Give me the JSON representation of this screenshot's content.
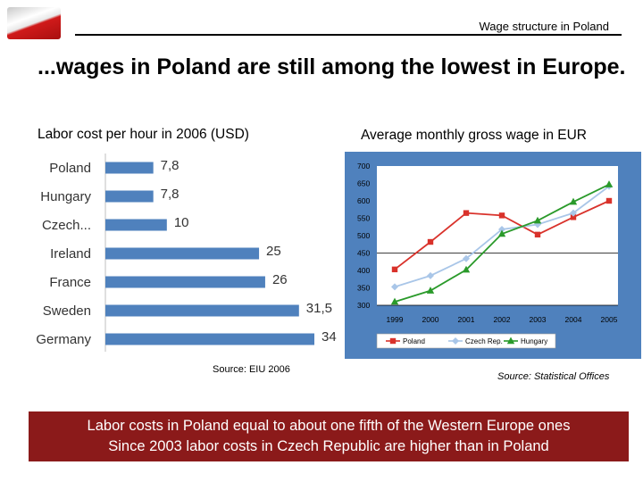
{
  "header": {
    "title": "Wage structure in Poland"
  },
  "headline": "...wages in Poland are still among the lowest in Europe.",
  "left_subtitle": "Labor cost per hour in 2006 (USD)",
  "right_subtitle": "Average monthly gross wage in EUR",
  "left_source": "Source: EIU 2006",
  "right_source": "Source: Statistical Offices",
  "banner": {
    "line1": "Labor costs in Poland equal to about one fifth of the Western Europe ones",
    "line2": "Since 2003 labor costs in Czech Republic are higher than in Poland"
  },
  "colors": {
    "bar": "#4f81bd",
    "line_panel_bg": "#4f81bd",
    "plot_bg": "#ffffff",
    "poland": "#d9322b",
    "czech": "#a9c6e8",
    "hungary": "#2a9a2a",
    "banner_bg": "#8b1a1a"
  },
  "chart_data": [
    {
      "type": "bar",
      "orientation": "horizontal",
      "title": "Labor cost per hour in 2006 (USD)",
      "categories": [
        "Poland",
        "Hungary",
        "Czech...",
        "Ireland",
        "France",
        "Sweden",
        "Germany"
      ],
      "values": [
        7.8,
        7.8,
        10,
        25,
        26,
        31.5,
        34
      ],
      "value_labels": [
        "7,8",
        "7,8",
        "10",
        "25",
        "26",
        "31,5",
        "34"
      ],
      "xlim": [
        0,
        34
      ],
      "grid": false
    },
    {
      "type": "line",
      "title": "Average monthly gross wage in EUR",
      "x": [
        "1999",
        "2000",
        "2001",
        "2002",
        "2003",
        "2004",
        "2005"
      ],
      "series": [
        {
          "name": "Poland",
          "marker": "square",
          "values": [
            403,
            482,
            565,
            558,
            503,
            553,
            600
          ]
        },
        {
          "name": "Czech Rep.",
          "marker": "diamond",
          "values": [
            353,
            385,
            434,
            518,
            532,
            565,
            642
          ]
        },
        {
          "name": "Hungary",
          "marker": "triangle",
          "values": [
            310,
            342,
            402,
            505,
            543,
            597,
            647
          ]
        }
      ],
      "yticks": [
        "700",
        "650",
        "600",
        "550",
        "500",
        "450",
        "400",
        "350",
        "300"
      ],
      "ylim": [
        300,
        700
      ],
      "legend": "bottom"
    }
  ]
}
